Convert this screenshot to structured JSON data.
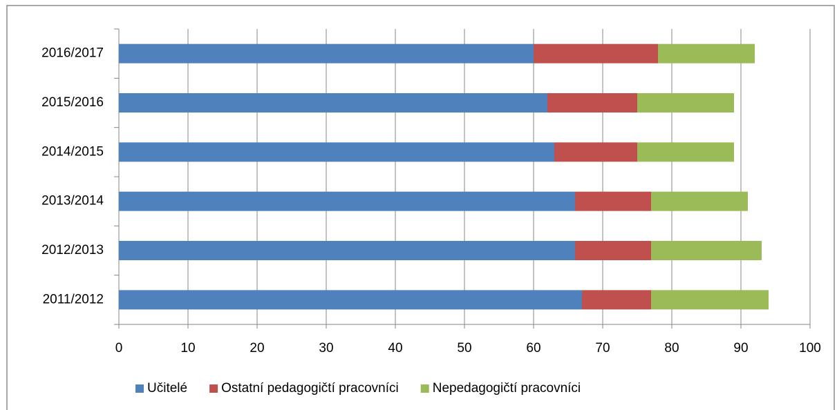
{
  "chart_data": {
    "type": "bar",
    "orientation": "horizontal",
    "stacked": true,
    "categories": [
      "2011/2012",
      "2012/2013",
      "2013/2014",
      "2014/2015",
      "2015/2016",
      "2016/2017"
    ],
    "series": [
      {
        "name": "Učitelé",
        "color": "#4f81bd",
        "values": [
          67,
          66,
          66,
          63,
          62,
          60
        ]
      },
      {
        "name": "Ostatní pedagogičtí pracovníci",
        "color": "#c0504d",
        "values": [
          10,
          11,
          11,
          12,
          13,
          18
        ]
      },
      {
        "name": "Nepedagogičtí pracovníci",
        "color": "#9bbb59",
        "values": [
          17,
          16,
          14,
          14,
          14,
          14
        ]
      }
    ],
    "xlim": [
      0,
      100
    ],
    "xticks": [
      0,
      10,
      20,
      30,
      40,
      50,
      60,
      70,
      80,
      90,
      100
    ],
    "grid": true,
    "legend": "bottom"
  }
}
